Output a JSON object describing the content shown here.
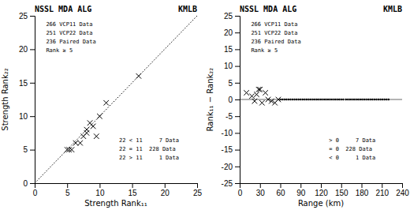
{
  "chart_data": [
    {
      "type": "scatter",
      "title": "NSSL MDA ALG",
      "subtitle": "KMLB",
      "x_label": "Strength Rank₁₁",
      "y_label": "Strength Rank₂₂",
      "annotations": [
        [
          "266 VCP11 Data",
          "251 VCP22 Data",
          "236 Paired Data",
          "Rank ≥ 5"
        ],
        [
          "22 < 11     7 Data",
          "22 = 11  228 Data",
          "22 > 11     1 Data"
        ]
      ],
      "series": [
        {
          "type": "line",
          "line_style": "dotted",
          "color": "black",
          "x": [
            0,
            25
          ],
          "values": [
            0,
            25
          ]
        },
        {
          "type": "scatter",
          "marker": "x",
          "color": "black",
          "x": [
            5.0,
            5.3,
            5.7,
            6.3,
            7.0,
            7.5,
            8.0,
            8.0,
            8.5,
            9.0,
            9.5,
            10.0,
            11.0,
            16.0
          ],
          "values": [
            5.0,
            5.0,
            5.0,
            6.0,
            6.0,
            7.0,
            8.0,
            7.5,
            9.0,
            8.5,
            7.0,
            10.0,
            12.0,
            16.0
          ]
        }
      ],
      "xlim": [
        0,
        25
      ],
      "ylim": [
        0,
        25
      ],
      "xticks": [
        0,
        5,
        10,
        15,
        20,
        25
      ],
      "yticks": [
        0,
        5,
        10,
        15,
        20,
        25
      ]
    },
    {
      "type": "scatter",
      "title": "NSSL MDA ALG",
      "subtitle": "KMLB",
      "x_label": "Range (km)",
      "y_label": "Rank₁₁ − Rank₂₂",
      "annotations": [
        [
          "266 VCP11 Data",
          "251 VCP22 Data",
          "236 Paired Data",
          "Rank ≥ 5"
        ],
        [
          "> 0     7 Data",
          "= 0  228 Data",
          "< 0     1 Data"
        ]
      ],
      "series": [
        {
          "type": "line",
          "line_style": "solid",
          "color": "black",
          "x": [
            0,
            240
          ],
          "values": [
            0,
            0
          ]
        },
        {
          "type": "scatter",
          "marker": "x",
          "color": "black",
          "x": [
            10,
            18,
            22,
            25,
            28,
            30,
            33,
            38,
            42,
            47,
            52,
            57
          ],
          "values": [
            2,
            1,
            -0.5,
            1.5,
            3,
            3,
            -1,
            2,
            0,
            -0.5,
            -1,
            0
          ]
        },
        {
          "type": "scatter",
          "marker": "point",
          "color": "black",
          "x": [
            60,
            63,
            66,
            69,
            72,
            75,
            78,
            81,
            84,
            87,
            90,
            93,
            96,
            99,
            102,
            105,
            108,
            111,
            114,
            117,
            120,
            123,
            126,
            129,
            132,
            135,
            138,
            141,
            144,
            147,
            150
          ],
          "values": [
            0,
            0,
            0,
            0,
            0,
            0,
            0,
            0,
            0,
            0,
            0,
            0,
            0,
            0,
            0,
            0,
            0,
            0,
            0,
            0,
            0,
            0,
            0,
            0,
            0,
            0,
            0,
            0,
            0,
            0,
            0
          ]
        },
        {
          "type": "scatter",
          "marker": "point",
          "color": "black",
          "x": [
            153,
            157
          ],
          "values": [
            0,
            0
          ]
        },
        {
          "type": "scatter",
          "marker": "point",
          "color": "black",
          "x": [
            160,
            163,
            166,
            169,
            172,
            175,
            178,
            181,
            184,
            187,
            190,
            193,
            196,
            199,
            202,
            205,
            208,
            211,
            214,
            217,
            220
          ],
          "values": [
            0,
            0,
            0,
            0,
            0,
            0,
            0,
            0,
            0,
            0,
            0,
            0,
            0,
            0,
            0,
            0,
            0,
            0,
            0,
            0,
            0
          ]
        }
      ],
      "xlim": [
        0,
        240
      ],
      "ylim": [
        -25,
        25
      ],
      "xticks": [
        0,
        30,
        60,
        90,
        120,
        150,
        180,
        210,
        240
      ],
      "yticks": [
        -25,
        -20,
        -15,
        -10,
        -5,
        0,
        5,
        10,
        15,
        20,
        25
      ]
    }
  ]
}
